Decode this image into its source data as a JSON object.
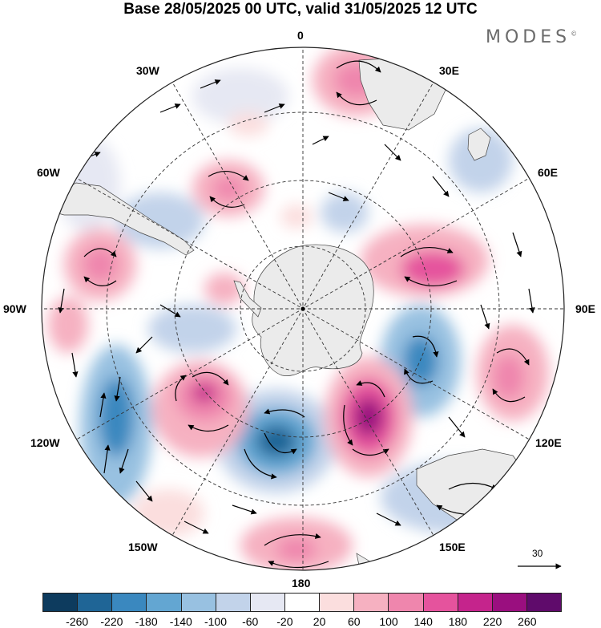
{
  "title": "Base 28/05/2025 00 UTC, valid 31/05/2025 12 UTC",
  "brand": "MODES",
  "brand_mark": "©",
  "longitude_labels": {
    "top": "0",
    "right_top_30": "30E",
    "right_top_60": "60E",
    "right": "90E",
    "right_bottom_120": "120E",
    "right_bottom_150": "150E",
    "bottom": "180",
    "left_bottom_150": "150W",
    "left_bottom_120": "120W",
    "left": "90W",
    "left_top_60": "60W",
    "left_top_30": "30W"
  },
  "reference_vector": {
    "label": "30"
  },
  "colorbar": {
    "colors": [
      "#0d3b5e",
      "#1f6596",
      "#3a88bf",
      "#63a6d2",
      "#98c1e1",
      "#c2d3ea",
      "#e6e8f3",
      "#ffffff",
      "#fbdede",
      "#f6b1c1",
      "#ef86ad",
      "#e5539d",
      "#c5248c",
      "#9a0f7f",
      "#5f0b6b"
    ],
    "ticks": [
      "-260",
      "-220",
      "-180",
      "-140",
      "-100",
      "-60",
      "-20",
      "20",
      "60",
      "100",
      "140",
      "180",
      "220",
      "260"
    ]
  },
  "colors": {
    "land_fill": "#ebebeb",
    "grid": "#333333"
  }
}
